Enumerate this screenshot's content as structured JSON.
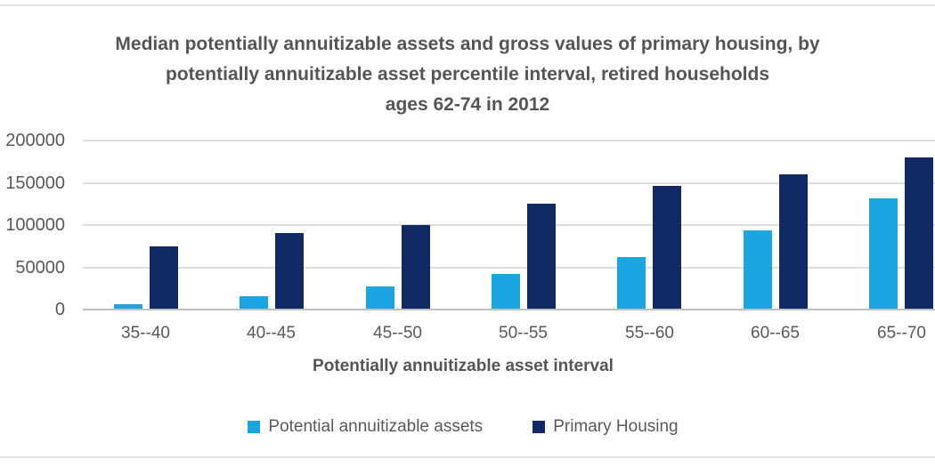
{
  "chart_data": {
    "type": "bar",
    "title_lines": [
      "Median potentially annuitizable assets and gross values of primary housing, by",
      "potentially annuitizable asset percentile interval, retired households",
      "ages 62-74 in 2012"
    ],
    "categories": [
      "35--40",
      "40--45",
      "45--50",
      "50--55",
      "55--60",
      "60--65",
      "65--70"
    ],
    "series": [
      {
        "name": "Potential annuitizable assets",
        "color": "#1aa7e1",
        "values": [
          6000,
          16000,
          27000,
          42000,
          62000,
          94000,
          132000
        ]
      },
      {
        "name": "Primary Housing",
        "color": "#112a66",
        "values": [
          75000,
          90000,
          100000,
          125000,
          146000,
          160000,
          180000
        ]
      }
    ],
    "xlabel": "Potentially annuitizable asset interval",
    "ylabel": "",
    "ylim": [
      0,
      200000
    ],
    "yticks": [
      0,
      50000,
      100000,
      150000,
      200000
    ],
    "ytick_labels": [
      "0",
      "50000",
      "100000",
      "150000",
      "200000"
    ],
    "grid": true,
    "legend_position": "bottom"
  },
  "colors": {
    "background": "#ffffff",
    "gridline": "#dddddd",
    "axis_line": "#c0c0c0",
    "text": "#595959",
    "title_text": "#555555",
    "border_line": "#e2e2e2"
  }
}
